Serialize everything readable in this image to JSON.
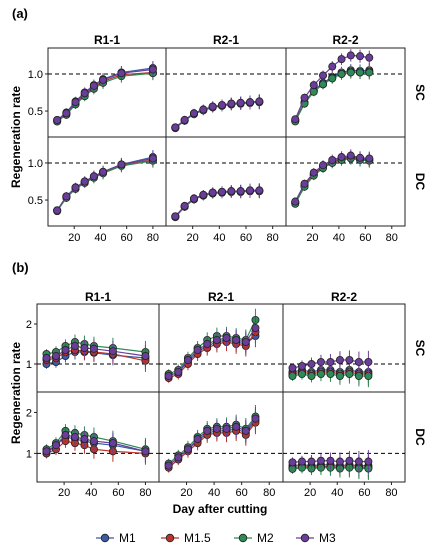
{
  "chart_data": [
    {
      "type": "line",
      "panel_label": "(a)",
      "ylabel": "Regeneration rate",
      "y_ticks": [
        "0.5",
        "1.0"
      ],
      "ylim": [
        0.15,
        1.35
      ],
      "reference_line": 1.0,
      "xlim": [
        0,
        90
      ],
      "x_ticks": [
        "20",
        "40",
        "60",
        "80"
      ],
      "columns": [
        "R1-1",
        "R2-1",
        "R2-2"
      ],
      "rows": [
        "SC",
        "DC"
      ],
      "colors": {
        "M1": "#3b5ba5",
        "M1.5": "#b8332b",
        "M2": "#2e8b57",
        "M3": "#6a3d9a"
      },
      "facets": [
        {
          "column": "R1-1",
          "row": "SC",
          "x": [
            7,
            14,
            21,
            28,
            35,
            42,
            56,
            80
          ],
          "series": [
            {
              "name": "M1",
              "values": [
                0.38,
                0.48,
                0.63,
                0.75,
                0.85,
                0.93,
                1.02,
                1.08
              ]
            },
            {
              "name": "M1.5",
              "values": [
                0.36,
                0.46,
                0.6,
                0.72,
                0.82,
                0.9,
                0.99,
                1.02
              ]
            },
            {
              "name": "M2",
              "values": [
                0.36,
                0.45,
                0.59,
                0.7,
                0.8,
                0.88,
                0.97,
                1.01
              ]
            },
            {
              "name": "M3",
              "values": [
                0.38,
                0.47,
                0.62,
                0.74,
                0.84,
                0.92,
                1.01,
                1.06
              ]
            }
          ]
        },
        {
          "column": "R2-1",
          "row": "SC",
          "x": [
            7,
            14,
            21,
            28,
            35,
            42,
            49,
            56,
            63,
            70
          ],
          "series": [
            {
              "name": "M1",
              "values": [
                0.28,
                0.38,
                0.47,
                0.52,
                0.56,
                0.58,
                0.6,
                0.61,
                0.62,
                0.63
              ]
            },
            {
              "name": "M1.5",
              "values": [
                0.27,
                0.37,
                0.46,
                0.51,
                0.55,
                0.57,
                0.59,
                0.6,
                0.61,
                0.62
              ]
            },
            {
              "name": "M2",
              "values": [
                0.27,
                0.37,
                0.46,
                0.51,
                0.55,
                0.57,
                0.59,
                0.6,
                0.61,
                0.62
              ]
            },
            {
              "name": "M3",
              "values": [
                0.28,
                0.38,
                0.47,
                0.52,
                0.56,
                0.58,
                0.6,
                0.61,
                0.62,
                0.63
              ]
            }
          ]
        },
        {
          "column": "R2-2",
          "row": "SC",
          "x": [
            7,
            14,
            21,
            28,
            35,
            42,
            49,
            56,
            63
          ],
          "series": [
            {
              "name": "M1",
              "values": [
                0.38,
                0.62,
                0.78,
                0.88,
                0.96,
                1.02,
                1.05,
                1.04,
                1.05
              ]
            },
            {
              "name": "M1.5",
              "values": [
                0.37,
                0.61,
                0.77,
                0.86,
                0.95,
                1.0,
                1.03,
                1.02,
                1.03
              ]
            },
            {
              "name": "M2",
              "values": [
                0.36,
                0.6,
                0.76,
                0.86,
                0.94,
                1.0,
                1.02,
                1.02,
                1.02
              ]
            },
            {
              "name": "M3",
              "values": [
                0.39,
                0.68,
                0.85,
                0.98,
                1.1,
                1.2,
                1.25,
                1.24,
                1.22
              ]
            }
          ]
        },
        {
          "column": "R1-1",
          "row": "DC",
          "x": [
            7,
            14,
            21,
            28,
            35,
            42,
            56,
            80
          ],
          "series": [
            {
              "name": "M1",
              "values": [
                0.36,
                0.55,
                0.67,
                0.75,
                0.82,
                0.88,
                0.98,
                1.08
              ]
            },
            {
              "name": "M1.5",
              "values": [
                0.36,
                0.54,
                0.66,
                0.74,
                0.81,
                0.87,
                0.97,
                1.04
              ]
            },
            {
              "name": "M2",
              "values": [
                0.35,
                0.53,
                0.65,
                0.73,
                0.8,
                0.86,
                0.96,
                1.03
              ]
            },
            {
              "name": "M3",
              "values": [
                0.36,
                0.55,
                0.67,
                0.75,
                0.82,
                0.88,
                0.98,
                1.06
              ]
            }
          ]
        },
        {
          "column": "R2-1",
          "row": "DC",
          "x": [
            7,
            14,
            21,
            28,
            35,
            42,
            49,
            56,
            63,
            70
          ],
          "series": [
            {
              "name": "M1",
              "values": [
                0.28,
                0.42,
                0.52,
                0.57,
                0.6,
                0.61,
                0.62,
                0.62,
                0.63,
                0.63
              ]
            },
            {
              "name": "M1.5",
              "values": [
                0.27,
                0.41,
                0.51,
                0.56,
                0.59,
                0.6,
                0.61,
                0.61,
                0.62,
                0.62
              ]
            },
            {
              "name": "M2",
              "values": [
                0.27,
                0.41,
                0.51,
                0.56,
                0.59,
                0.6,
                0.61,
                0.61,
                0.62,
                0.62
              ]
            },
            {
              "name": "M3",
              "values": [
                0.28,
                0.42,
                0.52,
                0.57,
                0.6,
                0.61,
                0.62,
                0.62,
                0.63,
                0.63
              ]
            }
          ]
        },
        {
          "column": "R2-2",
          "row": "DC",
          "x": [
            7,
            14,
            21,
            28,
            35,
            42,
            49,
            56,
            63
          ],
          "series": [
            {
              "name": "M1",
              "values": [
                0.47,
                0.7,
                0.85,
                0.95,
                1.02,
                1.06,
                1.08,
                1.06,
                1.05
              ]
            },
            {
              "name": "M1.5",
              "values": [
                0.46,
                0.69,
                0.84,
                0.94,
                1.01,
                1.05,
                1.07,
                1.05,
                1.04
              ]
            },
            {
              "name": "M2",
              "values": [
                0.45,
                0.68,
                0.83,
                0.93,
                1.0,
                1.04,
                1.06,
                1.04,
                1.03
              ]
            },
            {
              "name": "M3",
              "values": [
                0.48,
                0.72,
                0.87,
                0.97,
                1.04,
                1.08,
                1.1,
                1.07,
                1.06
              ]
            }
          ]
        }
      ]
    },
    {
      "type": "line",
      "panel_label": "(b)",
      "ylabel": "Regeneration rate",
      "xlabel": "Day after cutting",
      "y_ticks": [
        "1",
        "2"
      ],
      "ylim": [
        0.3,
        2.5
      ],
      "reference_line": 1.0,
      "xlim": [
        0,
        90
      ],
      "x_ticks": [
        "20",
        "40",
        "60",
        "80"
      ],
      "columns": [
        "R1-1",
        "R2-1",
        "R2-2"
      ],
      "rows": [
        "SC",
        "DC"
      ],
      "legend": [
        "M1",
        "M1.5",
        "M2",
        "M3"
      ],
      "colors": {
        "M1": "#3b5ba5",
        "M1.5": "#b8332b",
        "M2": "#2e8b57",
        "M3": "#6a3d9a"
      },
      "facets": [
        {
          "column": "R1-1",
          "row": "SC",
          "x": [
            7,
            14,
            21,
            28,
            35,
            42,
            56,
            80
          ],
          "series": [
            {
              "name": "M1",
              "values": [
                1.0,
                1.05,
                1.2,
                1.3,
                1.3,
                1.28,
                1.22,
                1.15
              ]
            },
            {
              "name": "M1.5",
              "values": [
                1.1,
                1.15,
                1.3,
                1.35,
                1.32,
                1.3,
                1.25,
                1.08
              ]
            },
            {
              "name": "M2",
              "values": [
                1.25,
                1.3,
                1.45,
                1.55,
                1.5,
                1.45,
                1.4,
                1.3
              ]
            },
            {
              "name": "M3",
              "values": [
                1.15,
                1.2,
                1.35,
                1.45,
                1.4,
                1.38,
                1.32,
                1.2
              ]
            }
          ]
        },
        {
          "column": "R2-1",
          "row": "SC",
          "x": [
            7,
            14,
            21,
            28,
            35,
            42,
            49,
            56,
            63,
            70
          ],
          "series": [
            {
              "name": "M1",
              "values": [
                0.7,
                0.8,
                1.05,
                1.3,
                1.45,
                1.55,
                1.6,
                1.55,
                1.5,
                1.7
              ]
            },
            {
              "name": "M1.5",
              "values": [
                0.65,
                0.75,
                1.0,
                1.25,
                1.4,
                1.5,
                1.55,
                1.5,
                1.45,
                1.8
              ]
            },
            {
              "name": "M2",
              "values": [
                0.75,
                0.85,
                1.15,
                1.4,
                1.6,
                1.7,
                1.7,
                1.65,
                1.6,
                2.1
              ]
            },
            {
              "name": "M3",
              "values": [
                0.7,
                0.8,
                1.1,
                1.35,
                1.5,
                1.6,
                1.65,
                1.6,
                1.55,
                1.9
              ]
            }
          ]
        },
        {
          "column": "R2-2",
          "row": "SC",
          "x": [
            7,
            14,
            21,
            28,
            35,
            42,
            49,
            56,
            63
          ],
          "series": [
            {
              "name": "M1",
              "values": [
                0.8,
                0.85,
                0.8,
                0.85,
                0.85,
                0.8,
                0.85,
                0.8,
                0.8
              ]
            },
            {
              "name": "M1.5",
              "values": [
                0.75,
                0.8,
                0.75,
                0.8,
                0.8,
                0.75,
                0.8,
                0.75,
                0.75
              ]
            },
            {
              "name": "M2",
              "values": [
                0.7,
                0.75,
                0.7,
                0.75,
                0.75,
                0.7,
                0.75,
                0.7,
                0.7
              ]
            },
            {
              "name": "M3",
              "values": [
                0.9,
                0.95,
                1.0,
                1.05,
                1.05,
                1.1,
                1.1,
                1.05,
                1.05
              ]
            }
          ]
        },
        {
          "column": "R1-1",
          "row": "DC",
          "x": [
            7,
            14,
            21,
            28,
            35,
            42,
            56,
            80
          ],
          "series": [
            {
              "name": "M1",
              "values": [
                1.0,
                1.2,
                1.4,
                1.35,
                1.3,
                1.25,
                1.2,
                1.05
              ]
            },
            {
              "name": "M1.5",
              "values": [
                1.0,
                1.1,
                1.3,
                1.25,
                1.2,
                1.1,
                1.05,
                1.0
              ]
            },
            {
              "name": "M2",
              "values": [
                1.1,
                1.25,
                1.55,
                1.5,
                1.45,
                1.4,
                1.3,
                1.1
              ]
            },
            {
              "name": "M3",
              "values": [
                1.05,
                1.2,
                1.45,
                1.4,
                1.35,
                1.3,
                1.25,
                1.05
              ]
            }
          ]
        },
        {
          "column": "R2-1",
          "row": "DC",
          "x": [
            7,
            14,
            21,
            28,
            35,
            42,
            49,
            56,
            63,
            70
          ],
          "series": [
            {
              "name": "M1",
              "values": [
                0.7,
                0.9,
                1.1,
                1.3,
                1.5,
                1.55,
                1.55,
                1.6,
                1.5,
                1.8
              ]
            },
            {
              "name": "M1.5",
              "values": [
                0.65,
                0.85,
                1.05,
                1.25,
                1.45,
                1.5,
                1.5,
                1.55,
                1.45,
                1.75
              ]
            },
            {
              "name": "M2",
              "values": [
                0.75,
                0.95,
                1.15,
                1.4,
                1.6,
                1.65,
                1.65,
                1.7,
                1.6,
                1.9
              ]
            },
            {
              "name": "M3",
              "values": [
                0.7,
                0.9,
                1.1,
                1.35,
                1.55,
                1.6,
                1.6,
                1.65,
                1.55,
                1.85
              ]
            }
          ]
        },
        {
          "column": "R2-2",
          "row": "DC",
          "x": [
            7,
            14,
            21,
            28,
            35,
            42,
            49,
            56,
            63
          ],
          "series": [
            {
              "name": "M1",
              "values": [
                0.7,
                0.72,
                0.7,
                0.72,
                0.72,
                0.7,
                0.72,
                0.7,
                0.7
              ]
            },
            {
              "name": "M1.5",
              "values": [
                0.65,
                0.68,
                0.66,
                0.68,
                0.68,
                0.66,
                0.68,
                0.66,
                0.66
              ]
            },
            {
              "name": "M2",
              "values": [
                0.62,
                0.65,
                0.63,
                0.65,
                0.65,
                0.63,
                0.65,
                0.63,
                0.63
              ]
            },
            {
              "name": "M3",
              "values": [
                0.78,
                0.8,
                0.8,
                0.82,
                0.82,
                0.8,
                0.82,
                0.8,
                0.8
              ]
            }
          ]
        }
      ]
    }
  ]
}
